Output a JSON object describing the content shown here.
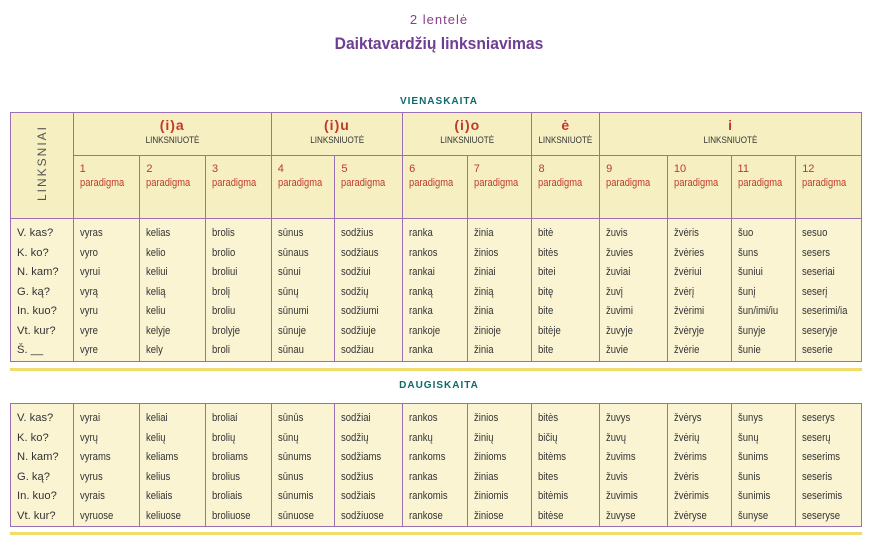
{
  "header": {
    "lentele": "2 lentelė",
    "title": "Daiktavardžių linksniavimas"
  },
  "side_label": "LINKSNIAI",
  "groups": [
    {
      "name": "(i)a",
      "label": "LINKSNIUOTĖ"
    },
    {
      "name": "(i)u",
      "label": "LINKSNIUOTĖ"
    },
    {
      "name": "(i)o",
      "label": "LINKSNIUOTĖ"
    },
    {
      "name": "ė",
      "label": "LINKSNIUOTĖ"
    },
    {
      "name": "i",
      "label": "LINKSNIUOTĖ"
    }
  ],
  "paradigms": [
    "1",
    "2",
    "3",
    "4",
    "5",
    "6",
    "7",
    "8",
    "9",
    "10",
    "11",
    "12"
  ],
  "paradigm_word": "paradigma",
  "singular": {
    "title": "VIENASKAITA",
    "cases": [
      "V. kas?",
      "K. ko?",
      "N. kam?",
      "G. ką?",
      "In. kuo?",
      "Vt. kur?",
      "Š. __"
    ],
    "columns": [
      [
        "vyras",
        "vyro",
        "vyrui",
        "vyrą",
        "vyru",
        "vyre",
        "vyre"
      ],
      [
        "kelias",
        "kelio",
        "keliui",
        "kelią",
        "keliu",
        "kelyje",
        "kely"
      ],
      [
        "brolis",
        "brolio",
        "broliui",
        "brolį",
        "broliu",
        "brolyje",
        "broli"
      ],
      [
        "sūnus",
        "sūnaus",
        "sūnui",
        "sūnų",
        "sūnumi",
        "sūnuje",
        "sūnau"
      ],
      [
        "sodžius",
        "sodžiaus",
        "sodžiui",
        "sodžių",
        "sodžiumi",
        "sodžiuje",
        "sodžiau"
      ],
      [
        "ranka",
        "rankos",
        "rankai",
        "ranką",
        "ranka",
        "rankoje",
        "ranka"
      ],
      [
        "žinia",
        "žinios",
        "žiniai",
        "žinią",
        "žinia",
        "žinioje",
        "žinia"
      ],
      [
        "bitė",
        "bitės",
        "bitei",
        "bitę",
        "bite",
        "bitėje",
        "bite"
      ],
      [
        "žuvis",
        "žuvies",
        "žuviai",
        "žuvį",
        "žuvimi",
        "žuvyje",
        "žuvie"
      ],
      [
        "žvėris",
        "žvėries",
        "žvėriui",
        "žvėrį",
        "žvėrimi",
        "žvėryje",
        "žvėrie"
      ],
      [
        "šuo",
        "šuns",
        "šuniui",
        "šunį",
        "šun/imi/iu",
        "šunyje",
        "šunie"
      ],
      [
        "sesuo",
        "sesers",
        "seseriai",
        "seserį",
        "seserimi/ia",
        "seseryje",
        "seserie"
      ]
    ]
  },
  "plural": {
    "title": "DAUGISKAITA",
    "cases": [
      "V. kas?",
      "K. ko?",
      "N. kam?",
      "G. ką?",
      "In. kuo?",
      "Vt. kur?"
    ],
    "columns": [
      [
        "vyrai",
        "vyrų",
        "vyrams",
        "vyrus",
        "vyrais",
        "vyruose"
      ],
      [
        "keliai",
        "kelių",
        "keliams",
        "kelius",
        "keliais",
        "keliuose"
      ],
      [
        "broliai",
        "brolių",
        "broliams",
        "brolius",
        "broliais",
        "broliuose"
      ],
      [
        "sūnūs",
        "sūnų",
        "sūnums",
        "sūnus",
        "sūnumis",
        "sūnuose"
      ],
      [
        "sodžiai",
        "sodžių",
        "sodžiams",
        "sodžius",
        "sodžiais",
        "sodžiuose"
      ],
      [
        "rankos",
        "rankų",
        "rankoms",
        "rankas",
        "rankomis",
        "rankose"
      ],
      [
        "žinios",
        "žinių",
        "žinioms",
        "žinias",
        "žiniomis",
        "žiniose"
      ],
      [
        "bitės",
        "bičių",
        "bitėms",
        "bites",
        "bitėmis",
        "bitėse"
      ],
      [
        "žuvys",
        "žuvų",
        "žuvims",
        "žuvis",
        "žuvimis",
        "žuvyse"
      ],
      [
        "žvėrys",
        "žvėrių",
        "žvėrims",
        "žvėris",
        "žvėrimis",
        "žvėryse"
      ],
      [
        "šunys",
        "šunų",
        "šunims",
        "šunis",
        "šunimis",
        "šunyse"
      ],
      [
        "seserys",
        "seserų",
        "seserims",
        "seseris",
        "seserimis",
        "seseryse"
      ]
    ]
  }
}
